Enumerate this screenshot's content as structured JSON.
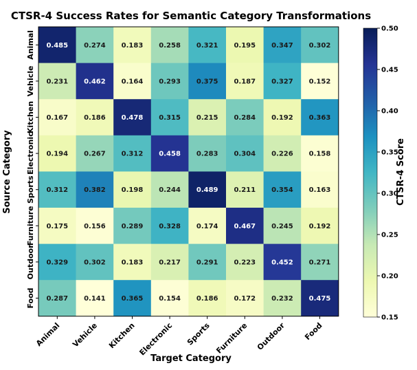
{
  "chart_data": {
    "type": "heatmap",
    "title": "CTSR-4 Success Rates for Semantic Category Transformations",
    "xlabel": "Target Category",
    "ylabel": "Source Category",
    "x_categories": [
      "Animal",
      "Vehicle",
      "Kitchen",
      "Electronic",
      "Sports",
      "Furniture",
      "Outdoor",
      "Food"
    ],
    "y_categories": [
      "Animal",
      "Vehicle",
      "Kitchen",
      "Electronic",
      "Sports",
      "Furniture",
      "Outdoor",
      "Food"
    ],
    "values": [
      [
        0.485,
        0.274,
        0.183,
        0.258,
        0.321,
        0.195,
        0.347,
        0.302
      ],
      [
        0.231,
        0.462,
        0.164,
        0.293,
        0.375,
        0.187,
        0.327,
        0.152
      ],
      [
        0.167,
        0.186,
        0.478,
        0.315,
        0.215,
        0.284,
        0.192,
        0.363
      ],
      [
        0.194,
        0.267,
        0.312,
        0.458,
        0.283,
        0.304,
        0.226,
        0.158
      ],
      [
        0.312,
        0.382,
        0.198,
        0.244,
        0.489,
        0.211,
        0.354,
        0.163
      ],
      [
        0.175,
        0.156,
        0.289,
        0.328,
        0.174,
        0.467,
        0.245,
        0.192
      ],
      [
        0.329,
        0.302,
        0.183,
        0.217,
        0.291,
        0.223,
        0.452,
        0.271
      ],
      [
        0.287,
        0.141,
        0.365,
        0.154,
        0.186,
        0.172,
        0.232,
        0.475
      ]
    ],
    "colorbar": {
      "label": "CTSR-4 Score",
      "range": [
        0.15,
        0.5
      ],
      "ticks": [
        0.15,
        0.2,
        0.25,
        0.3,
        0.35,
        0.4,
        0.45,
        0.5
      ],
      "tick_labels": [
        "0.15",
        "0.20",
        "0.25",
        "0.30",
        "0.35",
        "0.40",
        "0.45",
        "0.50"
      ],
      "colormap": "YlGnBu"
    }
  }
}
